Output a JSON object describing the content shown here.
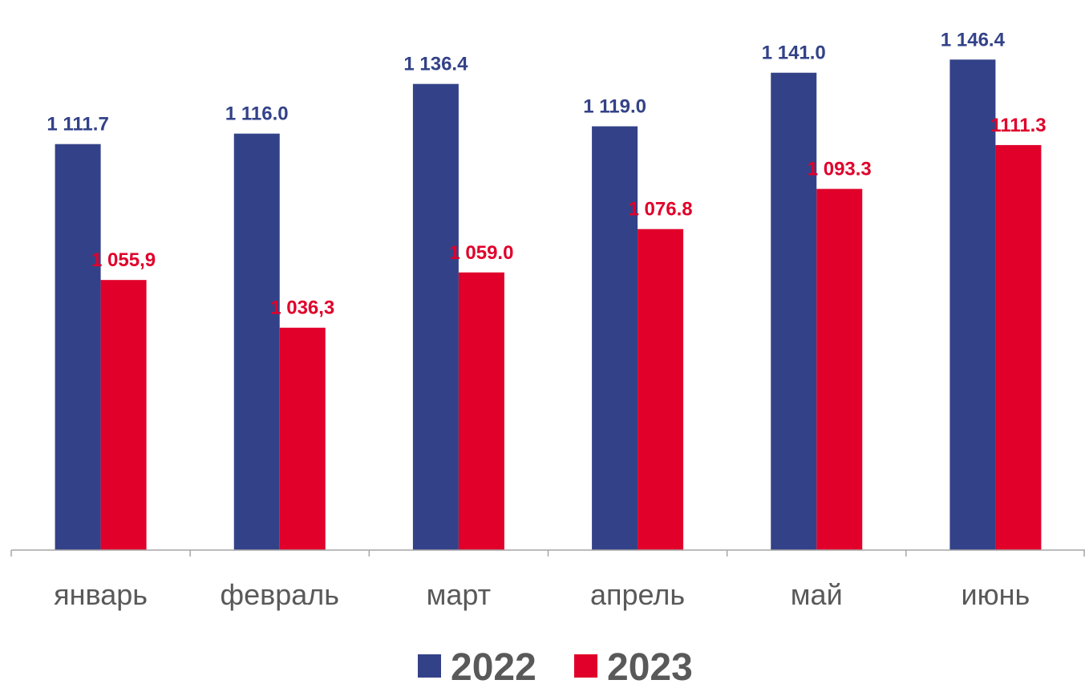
{
  "chart_data": {
    "type": "bar",
    "categories": [
      "январь",
      "февраль",
      "март",
      "апрель",
      "май",
      "июнь"
    ],
    "series": [
      {
        "name": "2022",
        "color": "#334288",
        "values": [
          1111.7,
          1116.0,
          1136.4,
          1119.0,
          1141.0,
          1146.4
        ],
        "labels": [
          "1 111.7",
          "1 116.0",
          "1 136.4",
          "1 119.0",
          "1 141.0",
          "1 146.4"
        ]
      },
      {
        "name": "2023",
        "color": "#e0002a",
        "values": [
          1055.9,
          1036.3,
          1059.0,
          1076.8,
          1093.3,
          1111.3
        ],
        "labels": [
          "1 055,9",
          "1 036,3",
          "1 059.0",
          "1 076.8",
          "1 093.3",
          "1111.3"
        ]
      }
    ],
    "ylim": [
      945,
      1160
    ],
    "grid": false,
    "legend_position": "bottom",
    "axis_color": "#a6a6a6"
  }
}
